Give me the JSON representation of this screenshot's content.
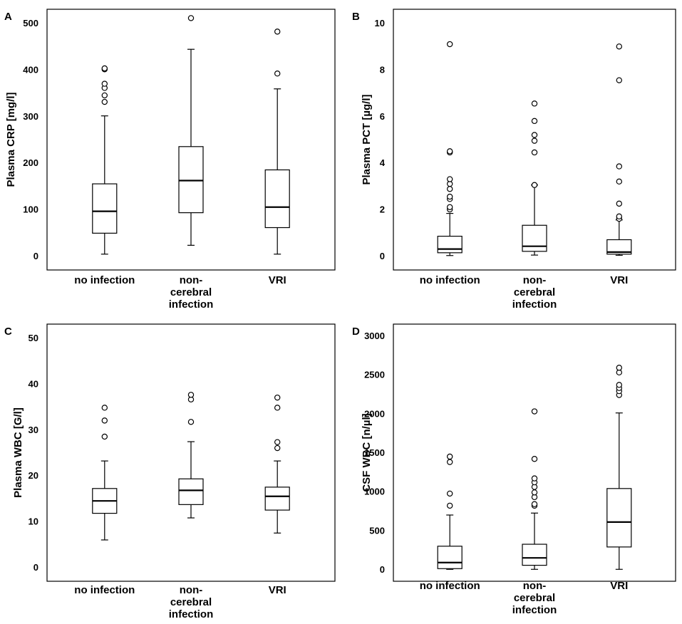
{
  "figure": {
    "panels": [
      "A",
      "B",
      "C",
      "D"
    ]
  },
  "chart_data": [
    {
      "panel": "A",
      "type": "boxplot",
      "ylabel": "Plasma CRP [mg/l]",
      "ylim": [
        -30,
        530
      ],
      "yticks": [
        0,
        100,
        200,
        300,
        400,
        500
      ],
      "categories": [
        "no infection",
        "non-\ncerebral\ninfection",
        "VRI"
      ],
      "boxes": [
        {
          "whisker_low": 4,
          "q1": 49,
          "median": 96,
          "q3": 155,
          "whisker_high": 301,
          "outliers": [
            331,
            345,
            361,
            370,
            401,
            403
          ]
        },
        {
          "whisker_low": 23,
          "q1": 93,
          "median": 162,
          "q3": 235,
          "whisker_high": 444,
          "outliers": [
            511
          ]
        },
        {
          "whisker_low": 4,
          "q1": 61,
          "median": 105,
          "q3": 185,
          "whisker_high": 359,
          "outliers": [
            392,
            482
          ]
        }
      ]
    },
    {
      "panel": "B",
      "type": "boxplot",
      "ylabel": "Plasma PCT [µg/l]",
      "ylim": [
        -0.6,
        10.6
      ],
      "yticks": [
        0,
        2,
        4,
        6,
        8,
        10
      ],
      "categories": [
        "no infection",
        "non-\ncerebral\ninfection",
        "VRI"
      ],
      "boxes": [
        {
          "whisker_low": 0.02,
          "q1": 0.14,
          "median": 0.3,
          "q3": 0.85,
          "whisker_high": 1.83,
          "outliers": [
            2.0,
            2.1,
            2.45,
            2.55,
            2.88,
            3.1,
            3.3,
            4.45,
            4.5,
            9.1
          ]
        },
        {
          "whisker_low": 0.04,
          "q1": 0.2,
          "median": 0.42,
          "q3": 1.32,
          "whisker_high": 3.05,
          "outliers": [
            3.05,
            4.45,
            4.95,
            5.2,
            5.8,
            6.55
          ]
        },
        {
          "whisker_low": 0.03,
          "q1": 0.08,
          "median": 0.17,
          "q3": 0.7,
          "whisker_high": 1.55,
          "outliers": [
            1.6,
            1.7,
            2.25,
            3.2,
            3.85,
            7.55,
            9.0
          ]
        }
      ]
    },
    {
      "panel": "C",
      "type": "boxplot",
      "ylabel": "Plasma WBC [G/l]",
      "ylim": [
        -3,
        53
      ],
      "yticks": [
        0,
        10,
        20,
        30,
        40,
        50
      ],
      "categories": [
        "no infection",
        "non-\ncerebral\ninfection",
        "VRI"
      ],
      "boxes": [
        {
          "whisker_low": 6.0,
          "q1": 11.8,
          "median": 14.5,
          "q3": 17.2,
          "whisker_high": 23.2,
          "outliers": [
            28.5,
            32.0,
            34.8
          ]
        },
        {
          "whisker_low": 10.8,
          "q1": 13.7,
          "median": 16.8,
          "q3": 19.3,
          "whisker_high": 27.4,
          "outliers": [
            31.7,
            36.6,
            37.6
          ]
        },
        {
          "whisker_low": 7.5,
          "q1": 12.5,
          "median": 15.5,
          "q3": 17.5,
          "whisker_high": 23.2,
          "outliers": [
            26.0,
            27.3,
            34.8,
            37.0
          ]
        }
      ]
    },
    {
      "panel": "D",
      "type": "boxplot",
      "ylabel": "CSF WBC [n/µl]",
      "ylim": [
        -150,
        3150
      ],
      "yticks": [
        0,
        500,
        1000,
        1500,
        2000,
        2500,
        3000
      ],
      "categories": [
        "no infection",
        "non-\ncerebral\ninfection",
        "VRI"
      ],
      "boxes": [
        {
          "whisker_low": 3,
          "q1": 12,
          "median": 90,
          "q3": 300,
          "whisker_high": 700,
          "outliers": [
            820,
            975,
            1380,
            1450
          ]
        },
        {
          "whisker_low": 3,
          "q1": 55,
          "median": 150,
          "q3": 325,
          "whisker_high": 725,
          "outliers": [
            820,
            840,
            930,
            990,
            1060,
            1120,
            1170,
            1420,
            2030
          ]
        },
        {
          "whisker_low": 3,
          "q1": 290,
          "median": 610,
          "q3": 1040,
          "whisker_high": 2010,
          "outliers": [
            2240,
            2290,
            2330,
            2370,
            2530,
            2590
          ]
        }
      ]
    }
  ]
}
